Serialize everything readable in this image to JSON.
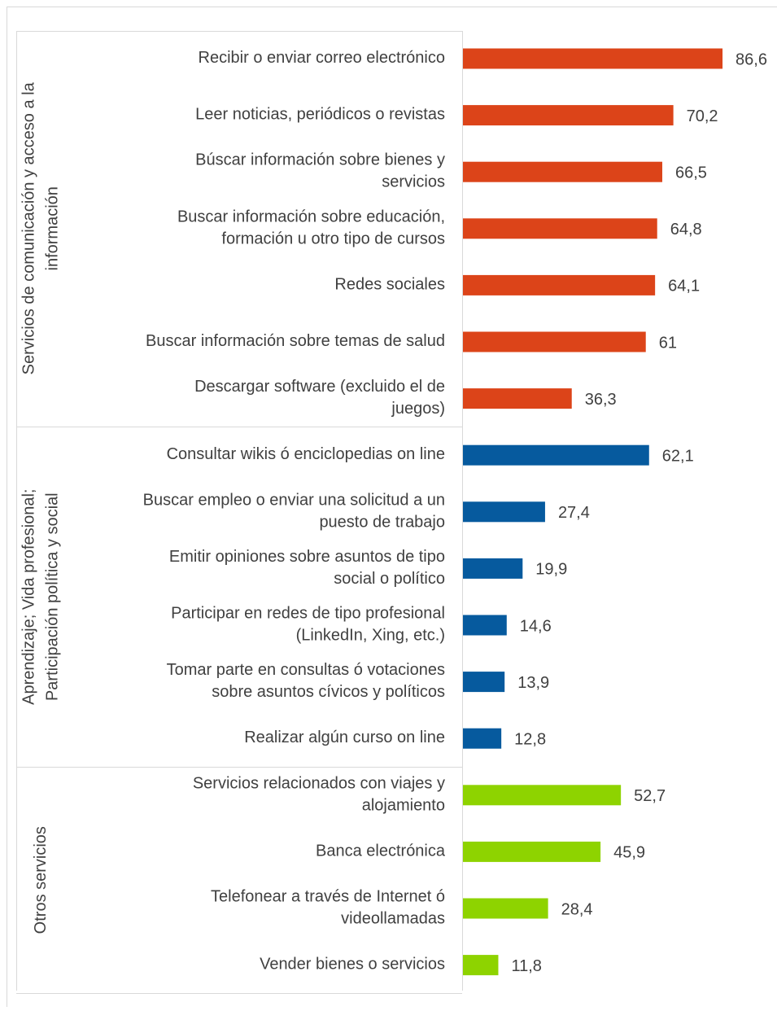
{
  "chart_data": {
    "type": "bar",
    "orientation": "horizontal",
    "series": [
      {
        "name": "Servicios de comunicación y acceso a la\ninformación",
        "color": "#dc4419",
        "categories": [
          "Recibir o enviar correo electrónico",
          "Leer noticias, periódicos o revistas",
          "Búscar información sobre bienes y\nservicios",
          "Buscar información sobre educación,\nformación u otro tipo de cursos",
          "Redes sociales",
          "Buscar información sobre temas de salud",
          "Descargar software (excluido el de\njuegos)"
        ],
        "values": [
          86.6,
          70.2,
          66.5,
          64.8,
          64.1,
          61,
          36.3
        ],
        "value_labels": [
          "86,6",
          "70,2",
          "66,5",
          "64,8",
          "64,1",
          "61",
          "36,3"
        ]
      },
      {
        "name": "Aprendizaje; Vida profesional;\nParticipación política y social",
        "color": "#065a9e",
        "categories": [
          "Consultar wikis ó enciclopedias on line",
          "Buscar empleo o enviar una solicitud a un\npuesto de trabajo",
          "Emitir opiniones sobre asuntos de tipo\nsocial o político",
          "Participar en redes de tipo profesional\n(LinkedIn, Xing, etc.)",
          "Tomar parte en consultas ó votaciones\nsobre asuntos cívicos y políticos",
          "Realizar algún curso on line"
        ],
        "values": [
          62.1,
          27.4,
          19.9,
          14.6,
          13.9,
          12.8
        ],
        "value_labels": [
          "62,1",
          "27,4",
          "19,9",
          "14,6",
          "13,9",
          "12,8"
        ]
      },
      {
        "name": "Otros servicios",
        "color": "#8ed300",
        "categories": [
          "Servicios relacionados con viajes y\nalojamiento",
          "Banca electrónica",
          "Telefonear a través de Internet ó\nvideollamadas",
          "Vender bienes o servicios"
        ],
        "values": [
          52.7,
          45.9,
          28.4,
          11.8
        ],
        "value_labels": [
          "52,7",
          "45,9",
          "28,4",
          "11,8"
        ]
      }
    ]
  }
}
